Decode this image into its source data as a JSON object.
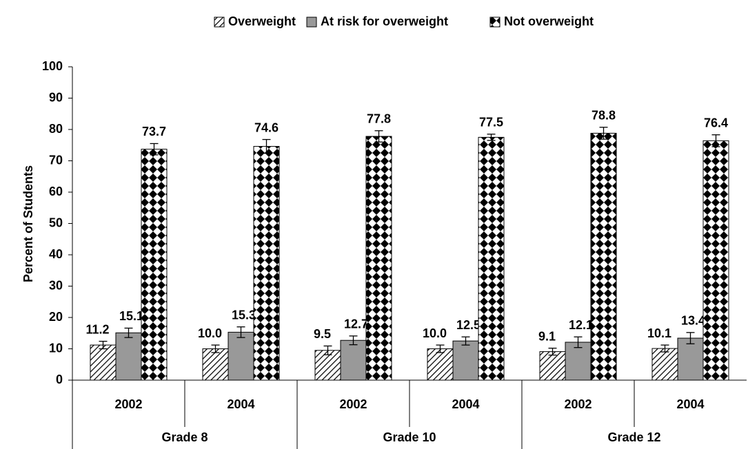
{
  "chart_data": {
    "type": "bar",
    "y_label": "Percent of Students",
    "categories": [
      "2002",
      "2004",
      "2002",
      "2004",
      "2002",
      "2004"
    ],
    "groups": [
      "Grade 8",
      "Grade 10",
      "Grade 12"
    ],
    "group_size": 2,
    "ylim": [
      0,
      100
    ],
    "yticks": [
      0,
      10,
      20,
      30,
      40,
      50,
      60,
      70,
      80,
      90,
      100
    ],
    "legend": "top",
    "series": [
      {
        "name": "Overweight",
        "color": "#ffffff",
        "pattern": "hatch",
        "values": [
          11.2,
          10.0,
          9.5,
          10.0,
          9.1,
          10.1
        ],
        "value_labels": [
          "11.2",
          "10.0",
          "9.5",
          "10.0",
          "9.1",
          "10.1"
        ],
        "errors": [
          1.2,
          1.2,
          1.4,
          1.2,
          1.1,
          1.1
        ]
      },
      {
        "name": "At risk for overweight",
        "color": "#999999",
        "pattern": "solid",
        "values": [
          15.1,
          15.3,
          12.7,
          12.5,
          12.1,
          13.4
        ],
        "value_labels": [
          "15.1",
          "15.3",
          "12.7",
          "12.5",
          "12.1",
          "13.4"
        ],
        "errors": [
          1.5,
          1.7,
          1.4,
          1.3,
          1.7,
          1.8
        ]
      },
      {
        "name": "Not overweight",
        "color": "#ffffff",
        "pattern": "checker",
        "values": [
          73.7,
          74.6,
          77.8,
          77.5,
          78.8,
          76.4
        ],
        "value_labels": [
          "73.7",
          "74.6",
          "77.8",
          "77.5",
          "78.8",
          "76.4"
        ],
        "errors": [
          1.8,
          2.2,
          1.8,
          1.0,
          1.9,
          1.9
        ]
      }
    ]
  }
}
